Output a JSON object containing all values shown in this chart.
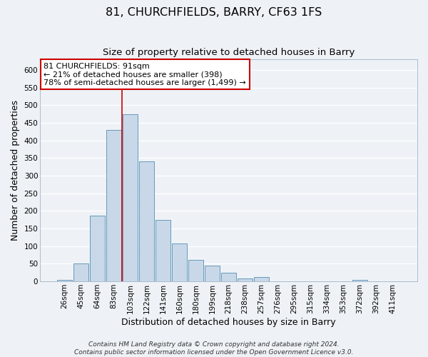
{
  "title": "81, CHURCHFIELDS, BARRY, CF63 1FS",
  "subtitle": "Size of property relative to detached houses in Barry",
  "xlabel": "Distribution of detached houses by size in Barry",
  "ylabel": "Number of detached properties",
  "bar_labels": [
    "26sqm",
    "45sqm",
    "64sqm",
    "83sqm",
    "103sqm",
    "122sqm",
    "141sqm",
    "160sqm",
    "180sqm",
    "199sqm",
    "218sqm",
    "238sqm",
    "257sqm",
    "276sqm",
    "295sqm",
    "315sqm",
    "334sqm",
    "353sqm",
    "372sqm",
    "392sqm",
    "411sqm"
  ],
  "bar_values": [
    5,
    50,
    187,
    430,
    475,
    340,
    175,
    107,
    60,
    45,
    25,
    9,
    12,
    0,
    0,
    0,
    0,
    0,
    5,
    0,
    0
  ],
  "bar_color": "#c8d8e8",
  "bar_edge_color": "#6699bb",
  "ylim": [
    0,
    630
  ],
  "yticks": [
    0,
    50,
    100,
    150,
    200,
    250,
    300,
    350,
    400,
    450,
    500,
    550,
    600
  ],
  "vline_color": "#cc0000",
  "annotation_line1": "81 CHURCHFIELDS: 91sqm",
  "annotation_line2": "← 21% of detached houses are smaller (398)",
  "annotation_line3": "78% of semi-detached houses are larger (1,499) →",
  "annotation_box_facecolor": "#ffffff",
  "annotation_box_edgecolor": "#cc0000",
  "footer1": "Contains HM Land Registry data © Crown copyright and database right 2024.",
  "footer2": "Contains public sector information licensed under the Open Government Licence v3.0.",
  "background_color": "#eef2f6",
  "grid_color": "#ffffff",
  "title_fontsize": 11.5,
  "subtitle_fontsize": 9.5,
  "axis_label_fontsize": 9,
  "tick_fontsize": 7.5,
  "annotation_fontsize": 8,
  "footer_fontsize": 6.5
}
